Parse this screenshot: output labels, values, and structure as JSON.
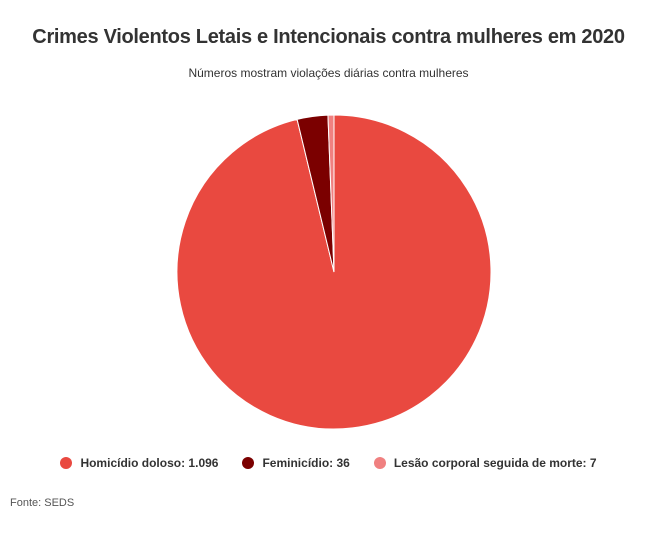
{
  "chart_data": {
    "type": "pie",
    "title": "Crimes Violentos Letais e Intencionais contra mulheres em 2020",
    "subtitle": "Números mostram violações diárias contra mulheres",
    "slices": [
      {
        "label": "Homicídio doloso",
        "value": 1096,
        "display_value": "1.096",
        "color": "#e94940"
      },
      {
        "label": "Feminicídio",
        "value": 36,
        "display_value": "36",
        "color": "#7b0000"
      },
      {
        "label": "Lesão corporal seguida de morte",
        "value": 7,
        "display_value": "7",
        "color": "#f08080"
      }
    ],
    "legend_position": "bottom",
    "source": "Fonte: SEDS"
  }
}
